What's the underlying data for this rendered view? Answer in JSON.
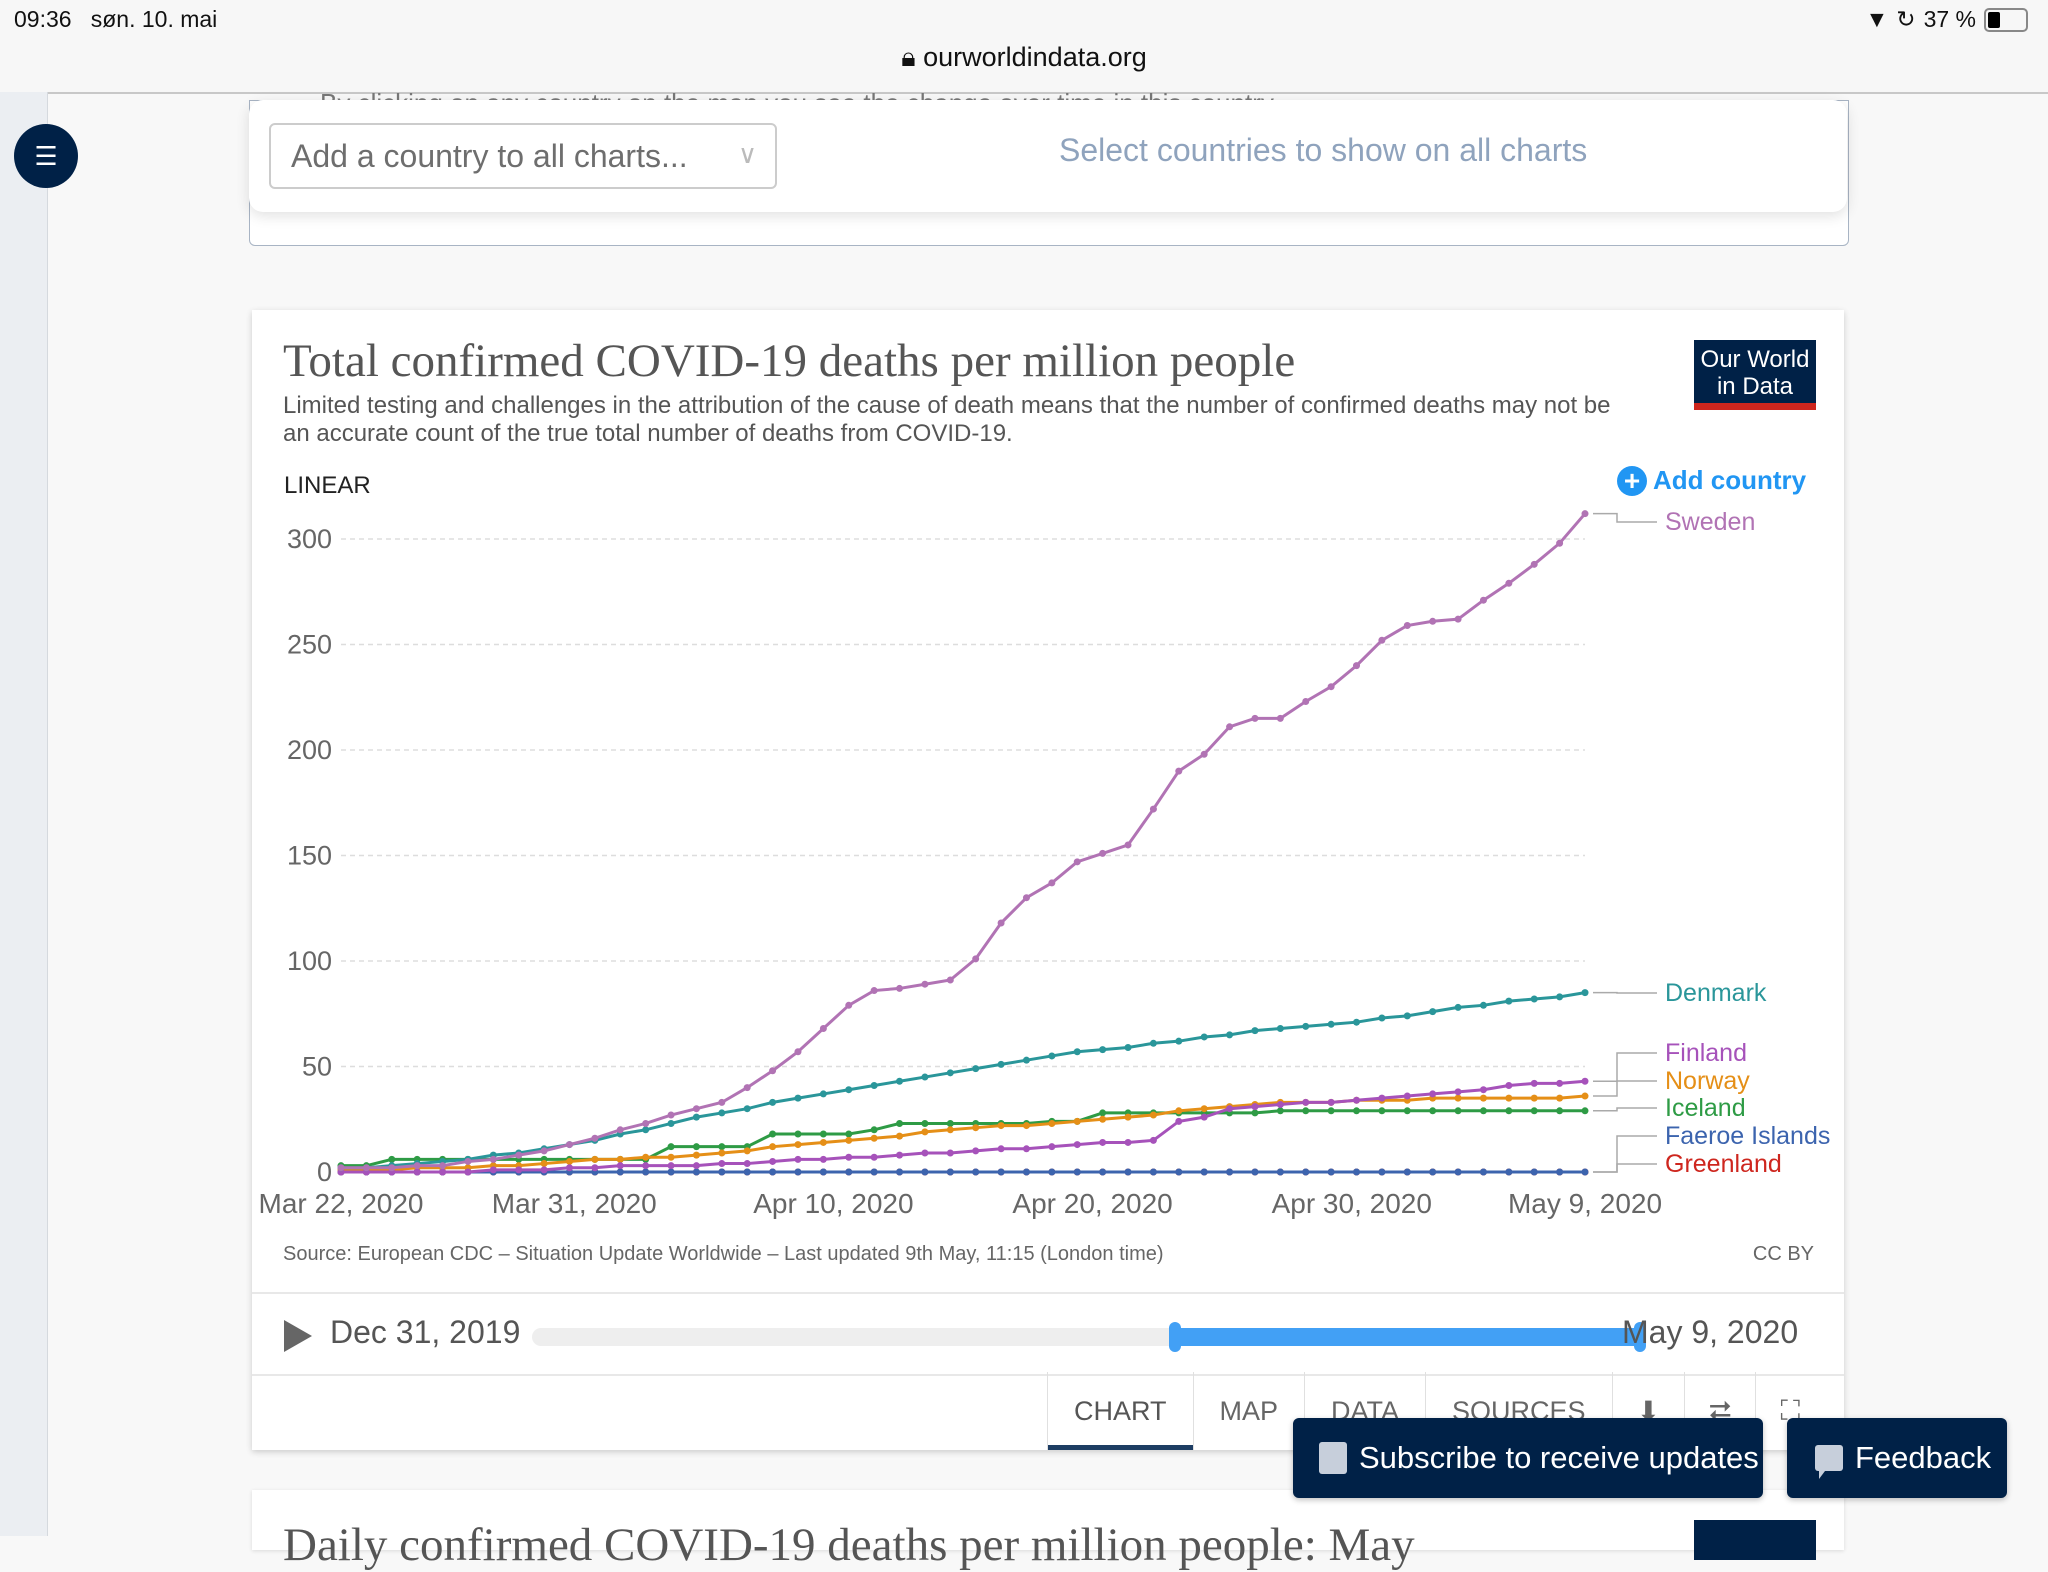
{
  "status_bar": {
    "time": "09:36",
    "date": "søn. 10. mai",
    "battery": "37 %",
    "url": "ourworldindata.org"
  },
  "page": {
    "partial_bullet": "By clicking on any country on the map you see the change over time in this country",
    "country_selector": {
      "placeholder": "Add a country to all charts...",
      "hint": "Select countries to show on all charts"
    },
    "toc_icon": "list-icon"
  },
  "card": {
    "title": "Total confirmed COVID-19 deaths per million people",
    "subtitle": "Limited testing and challenges in the attribution of the cause of death means that the number of confirmed deaths may not be an accurate count of the true total number of deaths from COVID-19.",
    "logo_line1": "Our World",
    "logo_line2": "in Data",
    "scale_toggle": "LINEAR",
    "add_country": "Add country",
    "source": "Source: European CDC – Situation Update Worldwide – Last updated 9th May, 11:15 (London time)",
    "license": "CC BY",
    "timeline": {
      "start_label": "Dec 31, 2019",
      "end_label": "May 9, 2020",
      "selected_start_fraction": 0.58,
      "selected_end_fraction": 1.0
    },
    "tabs": [
      {
        "label": "CHART",
        "active": true
      },
      {
        "label": "MAP"
      },
      {
        "label": "DATA"
      },
      {
        "label": "SOURCES"
      }
    ],
    "icon_tabs": [
      "download-icon",
      "share-icon",
      "fullscreen-icon"
    ]
  },
  "next_card": {
    "title_partial": "Daily confirmed COVID-19 deaths per million people: May"
  },
  "floating": {
    "subscribe": "Subscribe to receive updates",
    "feedback": "Feedback"
  },
  "chart_data": {
    "type": "line",
    "title": "Total confirmed COVID-19 deaths per million people",
    "xlabel": "",
    "ylabel": "",
    "x_start": "2020-03-22",
    "x_end": "2020-05-09",
    "x_ticks": [
      "Mar 22, 2020",
      "Mar 31, 2020",
      "Apr 10, 2020",
      "Apr 20, 2020",
      "Apr 30, 2020",
      "May 9, 2020"
    ],
    "x_tick_days": [
      0,
      9,
      19,
      29,
      39,
      48
    ],
    "y_ticks": [
      0,
      50,
      100,
      150,
      200,
      250,
      300
    ],
    "ylim": [
      0,
      300
    ],
    "grid": true,
    "legend": "right (inline labels)",
    "series": [
      {
        "name": "Sweden",
        "color": "#b173b4",
        "values": [
          2,
          2,
          2,
          3,
          3,
          5,
          6,
          8,
          10,
          13,
          16,
          20,
          23,
          27,
          30,
          33,
          40,
          48,
          57,
          68,
          79,
          86,
          87,
          89,
          91,
          101,
          118,
          130,
          137,
          147,
          151,
          155,
          172,
          190,
          198,
          211,
          215,
          215,
          223,
          230,
          240,
          252,
          259,
          261,
          262,
          271,
          279,
          288,
          298,
          312
        ]
      },
      {
        "name": "Denmark",
        "color": "#2a969a",
        "values": [
          2,
          2,
          3,
          4,
          5,
          6,
          8,
          9,
          11,
          13,
          15,
          18,
          20,
          23,
          26,
          28,
          30,
          33,
          35,
          37,
          39,
          41,
          43,
          45,
          47,
          49,
          51,
          53,
          55,
          57,
          58,
          59,
          61,
          62,
          64,
          65,
          67,
          68,
          69,
          70,
          71,
          73,
          74,
          76,
          78,
          79,
          81,
          82,
          83,
          85
        ]
      },
      {
        "name": "Finland",
        "color": "#a652ba",
        "values": [
          0,
          0,
          0,
          0,
          0,
          0,
          1,
          1,
          1,
          2,
          2,
          3,
          3,
          3,
          3,
          4,
          4,
          5,
          6,
          6,
          7,
          7,
          8,
          9,
          9,
          10,
          11,
          11,
          12,
          13,
          14,
          14,
          15,
          24,
          26,
          30,
          31,
          32,
          33,
          33,
          34,
          35,
          36,
          37,
          38,
          39,
          41,
          42,
          42,
          43
        ]
      },
      {
        "name": "Norway",
        "color": "#e58f17",
        "values": [
          1,
          1,
          1,
          2,
          2,
          2,
          3,
          3,
          4,
          5,
          6,
          6,
          7,
          7,
          8,
          9,
          10,
          12,
          13,
          14,
          15,
          16,
          17,
          19,
          20,
          21,
          22,
          22,
          23,
          24,
          25,
          26,
          27,
          29,
          30,
          31,
          32,
          33,
          33,
          33,
          34,
          34,
          34,
          35,
          35,
          35,
          35,
          35,
          35,
          36
        ]
      },
      {
        "name": "Iceland",
        "color": "#2e9b45",
        "values": [
          3,
          3,
          6,
          6,
          6,
          6,
          6,
          6,
          6,
          6,
          6,
          6,
          6,
          12,
          12,
          12,
          12,
          18,
          18,
          18,
          18,
          20,
          23,
          23,
          23,
          23,
          23,
          23,
          24,
          24,
          28,
          28,
          28,
          28,
          28,
          28,
          28,
          29,
          29,
          29,
          29,
          29,
          29,
          29,
          29,
          29,
          29,
          29,
          29,
          29
        ]
      },
      {
        "name": "Faeroe Islands",
        "color": "#3c64ae",
        "values": [
          0,
          0,
          0,
          0,
          0,
          0,
          0,
          0,
          0,
          0,
          0,
          0,
          0,
          0,
          0,
          0,
          0,
          0,
          0,
          0,
          0,
          0,
          0,
          0,
          0,
          0,
          0,
          0,
          0,
          0,
          0,
          0,
          0,
          0,
          0,
          0,
          0,
          0,
          0,
          0,
          0,
          0,
          0,
          0,
          0,
          0,
          0,
          0,
          0,
          0
        ]
      },
      {
        "name": "Greenland",
        "color": "#ce261e",
        "values": [
          0,
          0,
          0,
          0,
          0,
          0,
          0,
          0,
          0,
          0,
          0,
          0,
          0,
          0,
          0,
          0,
          0,
          0,
          0,
          0,
          0,
          0,
          0,
          0,
          0,
          0,
          0,
          0,
          0,
          0,
          0,
          0,
          0,
          0,
          0,
          0,
          0,
          0,
          0,
          0,
          0,
          0,
          0,
          0,
          0,
          0,
          0,
          0,
          0,
          0
        ]
      }
    ],
    "legend_label_values": {
      "Sweden": 312,
      "Denmark": 85,
      "Finland": 56,
      "Norway": 50,
      "Iceland": 43,
      "Faeroe Islands": 20,
      "Greenland": 6
    }
  }
}
